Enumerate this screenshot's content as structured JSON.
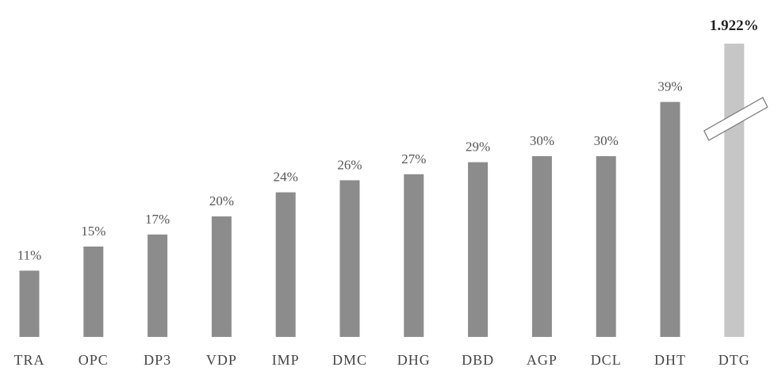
{
  "chart_data": {
    "type": "bar",
    "title": "",
    "xlabel": "",
    "ylabel": "",
    "categories": [
      "TRA",
      "OPC",
      "DP3",
      "VDP",
      "IMP",
      "DMC",
      "DHG",
      "DBD",
      "AGP",
      "DCL",
      "DHT",
      "DTG"
    ],
    "values": [
      11,
      15,
      17,
      20,
      24,
      26,
      27,
      29,
      30,
      30,
      39,
      1922
    ],
    "labels": [
      "11%",
      "15%",
      "17%",
      "20%",
      "24%",
      "26%",
      "27%",
      "29%",
      "30%",
      "30%",
      "39%",
      "1.922%"
    ],
    "ylim": [
      0,
      45
    ],
    "axis_break": true,
    "grid": false,
    "legend": "none",
    "colors": {
      "bar": "#8c8c8c",
      "bar_highlight": "#c6c6c6",
      "break_band": "#ffffff",
      "break_outline": "#777777"
    }
  }
}
